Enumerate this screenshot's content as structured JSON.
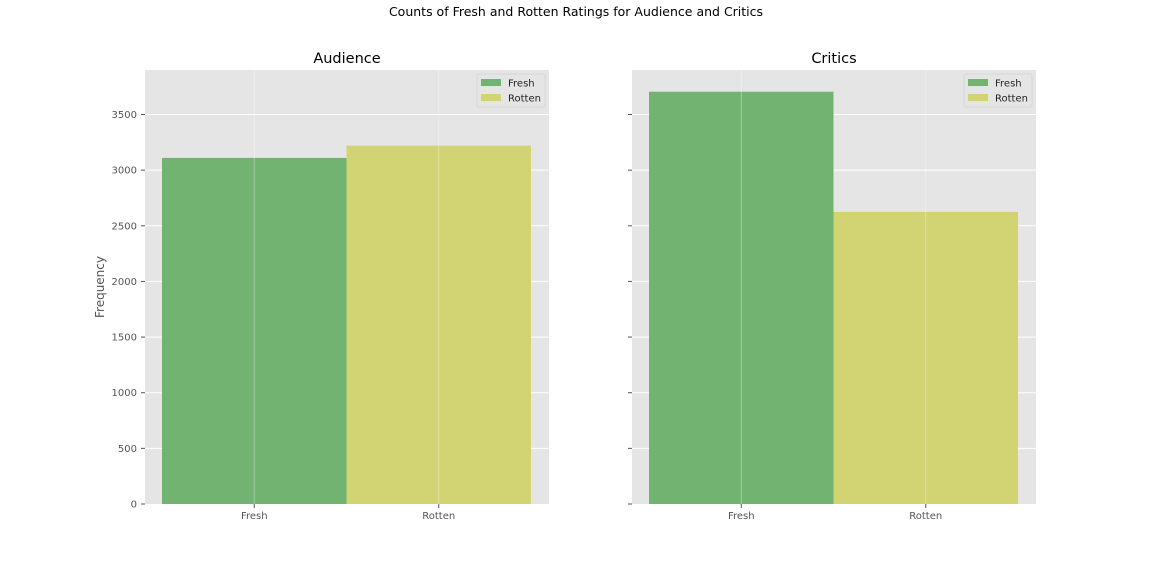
{
  "figure": {
    "suptitle": "Counts of Fresh and Rotten Ratings for Audience and Critics"
  },
  "colors": {
    "background": "#ffffff",
    "axes_bg": "#e5e5e5",
    "grid": "#ffffff",
    "tick_text": "#555555",
    "title_text": "#000000",
    "fresh": "#72b372",
    "rotten": "#d2d373"
  },
  "chart_data": [
    {
      "type": "bar",
      "title": "Audience",
      "xlabel": "",
      "ylabel": "Frequency",
      "categories": [
        "Fresh",
        "Rotten"
      ],
      "series": [
        {
          "name": "Fresh",
          "color": "#72b372",
          "values": [
            3110,
            null
          ]
        },
        {
          "name": "Rotten",
          "color": "#d2d373",
          "values": [
            null,
            3220
          ]
        }
      ],
      "ylim": [
        0,
        3900
      ],
      "yticks": [
        "0",
        "500",
        "1000",
        "1500",
        "2000",
        "2500",
        "3000",
        "3500"
      ],
      "grid": true,
      "legend": "top-right"
    },
    {
      "type": "bar",
      "title": "Critics",
      "xlabel": "",
      "ylabel": "",
      "categories": [
        "Fresh",
        "Rotten"
      ],
      "series": [
        {
          "name": "Fresh",
          "color": "#72b372",
          "values": [
            3705,
            null
          ]
        },
        {
          "name": "Rotten",
          "color": "#d2d373",
          "values": [
            null,
            2625
          ]
        }
      ],
      "ylim": [
        0,
        3900
      ],
      "yticks": [],
      "grid": true,
      "legend": "top-right"
    }
  ]
}
